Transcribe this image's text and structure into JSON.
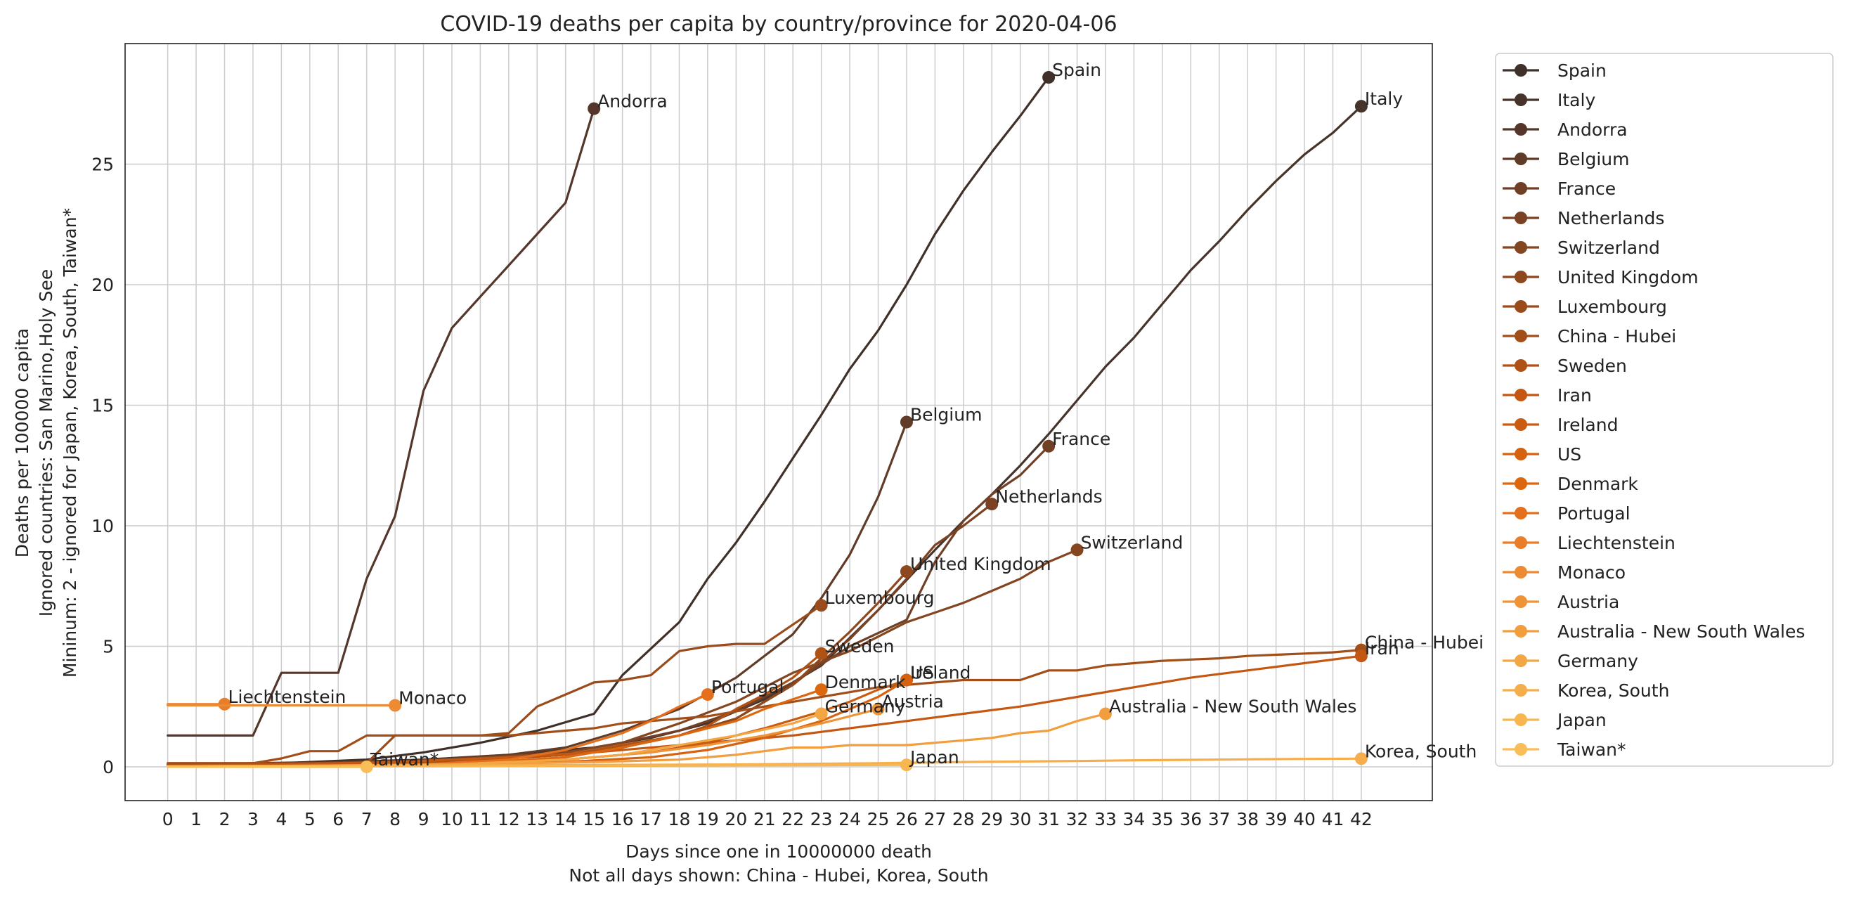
{
  "chart_data": {
    "type": "line",
    "title": "COVID-19 deaths per capita by country/province for 2020-04-06",
    "xlabel": "Days since one in 10000000 death",
    "xlabel_note": "Not all days shown: China - Hubei, Korea, South",
    "ylabel_lines": [
      "Deaths per 100000 capita",
      "Ignored countries: San Marino,Holy See",
      "Mininum: 2 - ignored for Japan, Korea, South, Taiwan*"
    ],
    "xlim": [
      -1.5,
      44.5
    ],
    "ylim": [
      -1.4,
      30
    ],
    "x_ticks": [
      0,
      1,
      2,
      3,
      4,
      5,
      6,
      7,
      8,
      9,
      10,
      11,
      12,
      13,
      14,
      15,
      16,
      17,
      18,
      19,
      20,
      21,
      22,
      23,
      24,
      25,
      26,
      27,
      28,
      29,
      30,
      31,
      32,
      33,
      34,
      35,
      36,
      37,
      38,
      39,
      40,
      41,
      42
    ],
    "y_ticks": [
      0,
      5,
      10,
      15,
      20,
      25
    ],
    "grid": true,
    "legend_position": "outside-right",
    "series": [
      {
        "name": "Spain",
        "color": "#3f3029",
        "x": [
          0,
          3,
          5,
          7,
          9,
          11,
          13,
          15,
          16,
          17,
          18,
          19,
          20,
          21,
          22,
          23,
          24,
          25,
          26,
          27,
          28,
          29,
          30,
          31
        ],
        "y": [
          0.05,
          0.1,
          0.2,
          0.3,
          0.6,
          1.0,
          1.5,
          2.2,
          3.8,
          4.9,
          6.0,
          7.8,
          9.3,
          11.0,
          12.8,
          14.6,
          16.5,
          18.1,
          20.0,
          22.1,
          23.9,
          25.5,
          27.0,
          28.6
        ]
      },
      {
        "name": "Italy",
        "color": "#46332a",
        "x": [
          0,
          3,
          6,
          9,
          12,
          15,
          17,
          19,
          21,
          23,
          25,
          27,
          28,
          29,
          30,
          31,
          32,
          33,
          34,
          35,
          36,
          37,
          38,
          39,
          40,
          41,
          42
        ],
        "y": [
          0.1,
          0.15,
          0.2,
          0.3,
          0.5,
          0.8,
          1.2,
          1.8,
          2.8,
          4.2,
          6.5,
          9.0,
          10.2,
          11.3,
          12.5,
          13.8,
          15.2,
          16.6,
          17.8,
          19.2,
          20.6,
          21.8,
          23.1,
          24.3,
          25.4,
          26.3,
          27.4
        ]
      },
      {
        "name": "Andorra",
        "color": "#54372a",
        "x": [
          0,
          3,
          4,
          5,
          6,
          7,
          8,
          9,
          10,
          11,
          12,
          13,
          14,
          15
        ],
        "y": [
          1.3,
          1.3,
          3.9,
          3.9,
          3.9,
          7.8,
          10.4,
          15.6,
          18.2,
          19.5,
          20.8,
          22.1,
          23.4,
          27.3
        ]
      },
      {
        "name": "Belgium",
        "color": "#603b28",
        "x": [
          0,
          4,
          8,
          12,
          14,
          16,
          18,
          20,
          22,
          23,
          24,
          25,
          26
        ],
        "y": [
          0.05,
          0.1,
          0.2,
          0.5,
          0.8,
          1.5,
          2.4,
          3.7,
          5.5,
          7.0,
          8.8,
          11.2,
          14.3
        ]
      },
      {
        "name": "France",
        "color": "#6f3f26",
        "x": [
          0,
          5,
          10,
          14,
          16,
          18,
          20,
          22,
          24,
          26,
          27,
          28,
          29,
          30,
          31
        ],
        "y": [
          0.05,
          0.1,
          0.25,
          0.6,
          1.0,
          1.5,
          2.3,
          3.5,
          5.0,
          6.1,
          8.5,
          10.2,
          11.3,
          12.1,
          13.3
        ]
      },
      {
        "name": "Netherlands",
        "color": "#7a4223",
        "x": [
          0,
          5,
          10,
          15,
          18,
          20,
          22,
          24,
          25,
          26,
          27,
          28,
          29
        ],
        "y": [
          0.05,
          0.15,
          0.3,
          0.6,
          1.3,
          2.0,
          3.4,
          5.3,
          6.5,
          7.8,
          9.2,
          10.0,
          10.9
        ]
      },
      {
        "name": "Switzerland",
        "color": "#844521",
        "x": [
          0,
          5,
          10,
          14,
          16,
          18,
          20,
          22,
          24,
          26,
          27,
          28,
          29,
          30,
          31,
          32
        ],
        "y": [
          0.05,
          0.1,
          0.3,
          0.6,
          1.0,
          1.8,
          2.7,
          3.9,
          4.8,
          6.0,
          6.4,
          6.8,
          7.3,
          7.8,
          8.5,
          9.0
        ]
      },
      {
        "name": "United Kingdom",
        "color": "#8e481e",
        "x": [
          0,
          6,
          10,
          14,
          16,
          18,
          20,
          22,
          23,
          24,
          25,
          26
        ],
        "y": [
          0.05,
          0.1,
          0.2,
          0.5,
          0.8,
          1.3,
          2.0,
          3.4,
          4.5,
          5.6,
          6.8,
          8.1
        ]
      },
      {
        "name": "Luxembourg",
        "color": "#9a4b1b",
        "x": [
          0,
          7,
          8,
          9,
          10,
          11,
          12,
          13,
          14,
          15,
          16,
          17,
          18,
          19,
          20,
          21,
          22,
          23
        ],
        "y": [
          0.15,
          0.15,
          1.3,
          1.3,
          1.3,
          1.3,
          1.4,
          2.5,
          3.0,
          3.5,
          3.6,
          3.8,
          4.8,
          5.0,
          5.1,
          5.1,
          5.9,
          6.7
        ]
      },
      {
        "name": "China - Hubei",
        "color": "#a24e19",
        "x": [
          0,
          3,
          4,
          5,
          6,
          7,
          8,
          9,
          10,
          11,
          12,
          13,
          14,
          15,
          16,
          17,
          18,
          19,
          20,
          21,
          22,
          23,
          24,
          25,
          26,
          27,
          28,
          29,
          30,
          31,
          32,
          33,
          34,
          35,
          36,
          37,
          38,
          39,
          40,
          41,
          42
        ],
        "y": [
          0.15,
          0.15,
          0.35,
          0.65,
          0.65,
          1.3,
          1.3,
          1.3,
          1.3,
          1.3,
          1.3,
          1.4,
          1.5,
          1.6,
          1.8,
          1.9,
          2.0,
          2.1,
          2.3,
          2.5,
          2.7,
          2.9,
          3.1,
          3.3,
          3.4,
          3.5,
          3.6,
          3.6,
          3.6,
          4.0,
          4.0,
          4.2,
          4.3,
          4.4,
          4.45,
          4.5,
          4.6,
          4.65,
          4.7,
          4.75,
          4.85
        ]
      },
      {
        "name": "Sweden",
        "color": "#b05115",
        "x": [
          0,
          6,
          10,
          14,
          16,
          18,
          19,
          20,
          21,
          22,
          23
        ],
        "y": [
          0.05,
          0.1,
          0.2,
          0.5,
          0.9,
          1.3,
          1.7,
          2.4,
          3.0,
          3.7,
          4.7
        ]
      },
      {
        "name": "Iran",
        "color": "#c45812",
        "x": [
          0,
          4,
          8,
          12,
          15,
          18,
          20,
          22,
          24,
          26,
          28,
          30,
          32,
          34,
          36,
          38,
          40,
          42
        ],
        "y": [
          0.05,
          0.1,
          0.2,
          0.4,
          0.6,
          0.9,
          1.1,
          1.3,
          1.6,
          1.9,
          2.2,
          2.5,
          2.9,
          3.3,
          3.7,
          4.0,
          4.3,
          4.6
        ]
      },
      {
        "name": "Ireland",
        "color": "#ca5c11",
        "x": [
          0,
          6,
          10,
          14,
          17,
          19,
          21,
          23,
          24,
          25,
          26
        ],
        "y": [
          0.02,
          0.05,
          0.1,
          0.3,
          0.6,
          1.0,
          1.6,
          2.3,
          2.7,
          3.2,
          3.6
        ]
      },
      {
        "name": "US",
        "color": "#d6620f",
        "x": [
          0,
          6,
          10,
          14,
          17,
          19,
          21,
          23,
          24,
          25,
          26
        ],
        "y": [
          0.02,
          0.05,
          0.1,
          0.2,
          0.4,
          0.7,
          1.2,
          1.9,
          2.4,
          2.9,
          3.6
        ]
      },
      {
        "name": "Denmark",
        "color": "#dd670f",
        "x": [
          0,
          6,
          10,
          14,
          16,
          18,
          20,
          21,
          22,
          23
        ],
        "y": [
          0.02,
          0.05,
          0.1,
          0.4,
          0.8,
          1.3,
          1.9,
          2.4,
          2.8,
          3.2
        ]
      },
      {
        "name": "Portugal",
        "color": "#e4701d",
        "x": [
          0,
          5,
          9,
          12,
          14,
          16,
          17,
          18,
          19
        ],
        "y": [
          0.02,
          0.05,
          0.1,
          0.3,
          0.7,
          1.4,
          1.9,
          2.5,
          3.0
        ]
      },
      {
        "name": "Liechtenstein",
        "color": "#e87d2a",
        "x": [
          0,
          1,
          2
        ],
        "y": [
          2.6,
          2.6,
          2.6
        ]
      },
      {
        "name": "Monaco",
        "color": "#ec8b33",
        "x": [
          0,
          2,
          4,
          6,
          8
        ],
        "y": [
          2.55,
          2.55,
          2.55,
          2.55,
          2.55
        ]
      },
      {
        "name": "Austria",
        "color": "#ef9436",
        "x": [
          0,
          6,
          10,
          14,
          17,
          19,
          21,
          23,
          24,
          25
        ],
        "y": [
          0.02,
          0.05,
          0.1,
          0.3,
          0.6,
          0.9,
          1.3,
          1.8,
          2.1,
          2.4
        ]
      },
      {
        "name": "Australia - New South Wales",
        "color": "#f29e3e",
        "x": [
          0,
          5,
          10,
          15,
          18,
          20,
          22,
          23,
          24,
          25,
          26,
          27,
          28,
          29,
          30,
          31,
          32,
          33
        ],
        "y": [
          0.02,
          0.05,
          0.1,
          0.2,
          0.3,
          0.5,
          0.8,
          0.8,
          0.9,
          0.9,
          0.9,
          1.0,
          1.1,
          1.2,
          1.4,
          1.5,
          1.9,
          2.2
        ]
      },
      {
        "name": "Germany",
        "color": "#f3a644",
        "x": [
          0,
          6,
          10,
          14,
          16,
          18,
          20,
          22,
          23
        ],
        "y": [
          0.02,
          0.05,
          0.1,
          0.3,
          0.5,
          0.9,
          1.3,
          1.8,
          2.2
        ]
      },
      {
        "name": "Korea, South",
        "color": "#f5ae4b",
        "x": [
          0,
          5,
          10,
          15,
          20,
          25,
          28,
          30,
          32,
          34,
          36,
          38,
          40,
          42
        ],
        "y": [
          0.02,
          0.03,
          0.05,
          0.08,
          0.1,
          0.15,
          0.2,
          0.22,
          0.24,
          0.27,
          0.29,
          0.31,
          0.33,
          0.34
        ]
      },
      {
        "name": "Japan",
        "color": "#f7b650",
        "x": [
          0,
          5,
          10,
          15,
          20,
          26
        ],
        "y": [
          0.01,
          0.02,
          0.03,
          0.04,
          0.06,
          0.08
        ]
      },
      {
        "name": "Taiwan*",
        "color": "#f9be57",
        "x": [
          0,
          3,
          5,
          7
        ],
        "y": [
          0.0,
          0.0,
          0.0,
          0.0
        ]
      }
    ]
  }
}
